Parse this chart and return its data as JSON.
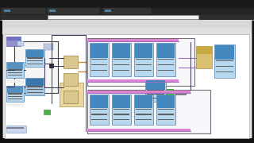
{
  "bg_color": "#111111",
  "figsize": [
    3.2,
    1.8
  ],
  "dpi": 100,
  "canvas_bg": "#ffffff",
  "blue_block": "#b8d8f0",
  "blue_block_dark": "#8ab8d8",
  "blue_block_top": "#6090c0",
  "tan_block": "#d8c890",
  "tan_block2": "#c8b870",
  "purple_wire": "#a070c0",
  "pink_wire": "#e080d0",
  "dark_wire": "#303050",
  "green_dot": "#60b060",
  "orange_wire": "#c09040",
  "browser_dark": "#202020",
  "browser_mid": "#383838",
  "browser_light": "#484848",
  "lv_bg": "#f0f0f0",
  "lv_canvas": "#ffffff",
  "lv_border": "#808080",
  "small_blue": "#a0c8e8",
  "loop_border": "#606060",
  "loop_bg": "#f8f8fc"
}
